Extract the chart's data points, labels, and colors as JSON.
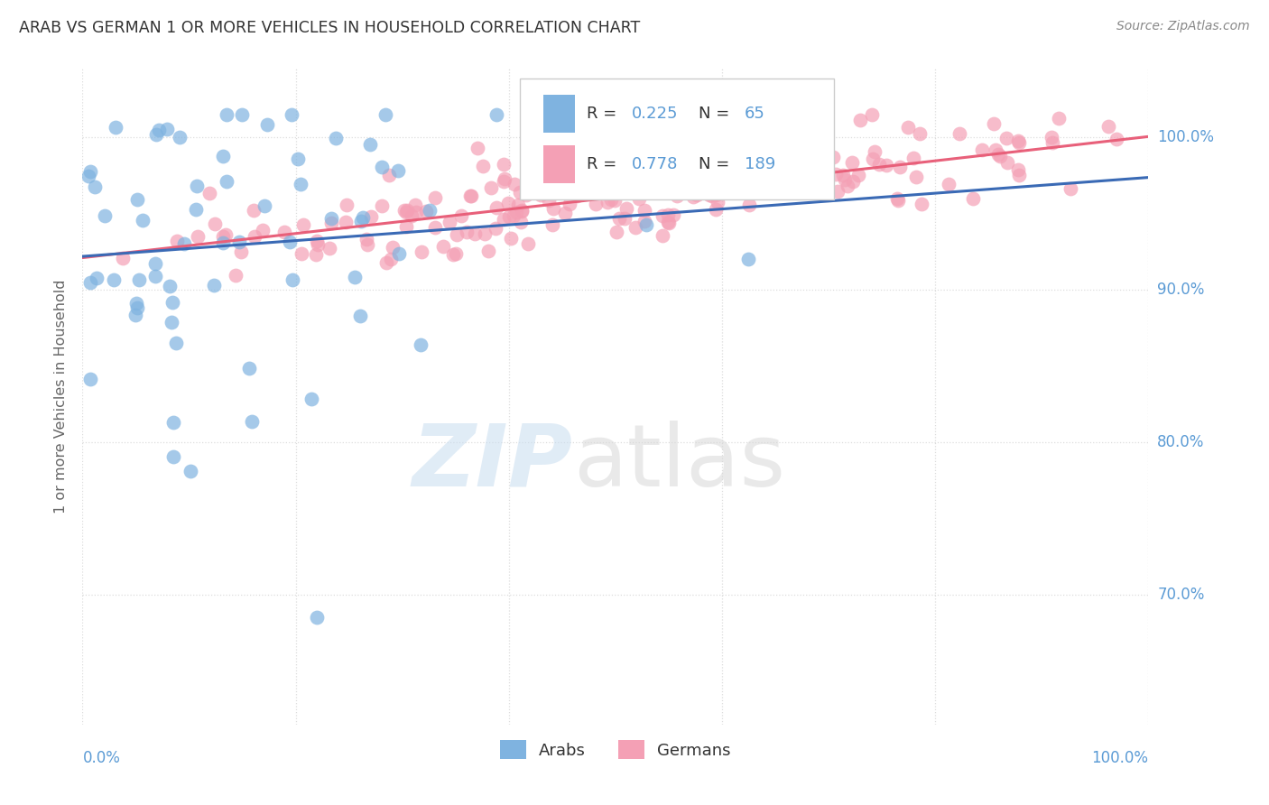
{
  "title": "ARAB VS GERMAN 1 OR MORE VEHICLES IN HOUSEHOLD CORRELATION CHART",
  "source": "Source: ZipAtlas.com",
  "ylabel": "1 or more Vehicles in Household",
  "yticks": [
    "70.0%",
    "80.0%",
    "90.0%",
    "100.0%"
  ],
  "ytick_vals": [
    0.7,
    0.8,
    0.9,
    1.0
  ],
  "arab_color": "#7fb3e0",
  "german_color": "#f4a0b5",
  "arab_line_color": "#3a6ab5",
  "german_line_color": "#e8607a",
  "background_color": "#ffffff",
  "tick_color": "#5b9bd5",
  "arab_R": 0.225,
  "arab_N": 65,
  "german_R": 0.778,
  "german_N": 189,
  "xlim": [
    0.0,
    1.0
  ],
  "ylim": [
    0.615,
    1.045
  ],
  "grid_color": "#dddddd",
  "legend_edge_color": "#cccccc"
}
